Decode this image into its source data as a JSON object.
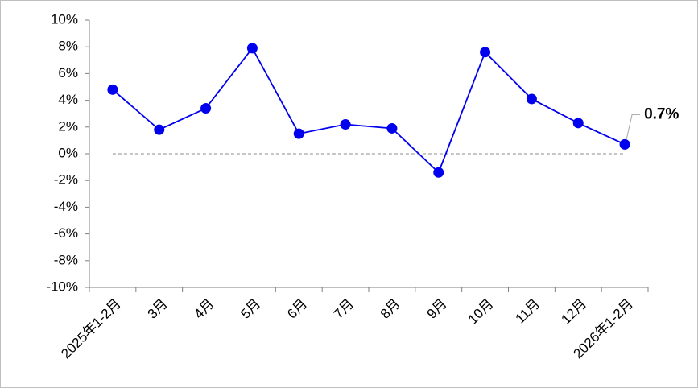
{
  "chart_data": {
    "type": "line",
    "categories": [
      "2025年1-2月",
      "3月",
      "4月",
      "5月",
      "6月",
      "7月",
      "8月",
      "9月",
      "10月",
      "11月",
      "12月",
      "2026年1-2月"
    ],
    "series": [
      {
        "color": "#0000ee",
        "values": [
          4.8,
          1.8,
          3.4,
          7.9,
          1.5,
          2.2,
          1.9,
          -1.4,
          7.6,
          4.1,
          2.3,
          0.7
        ],
        "value_labels": [
          null,
          null,
          null,
          null,
          null,
          null,
          null,
          null,
          null,
          null,
          null,
          "0.7%"
        ]
      }
    ],
    "ylim": [
      -10,
      10
    ],
    "yticks": [
      {
        "value": -10,
        "label": "-10%"
      },
      {
        "value": -8,
        "label": "-8%"
      },
      {
        "value": -6,
        "label": "-6%"
      },
      {
        "value": -4,
        "label": "-4%"
      },
      {
        "value": -2,
        "label": "-2%"
      },
      {
        "value": 0,
        "label": "0%"
      },
      {
        "value": 2,
        "label": "2%"
      },
      {
        "value": 4,
        "label": "4%"
      },
      {
        "value": 6,
        "label": "6%"
      },
      {
        "value": 8,
        "label": "8%"
      },
      {
        "value": 10,
        "label": "10%"
      }
    ],
    "grid": false
  }
}
